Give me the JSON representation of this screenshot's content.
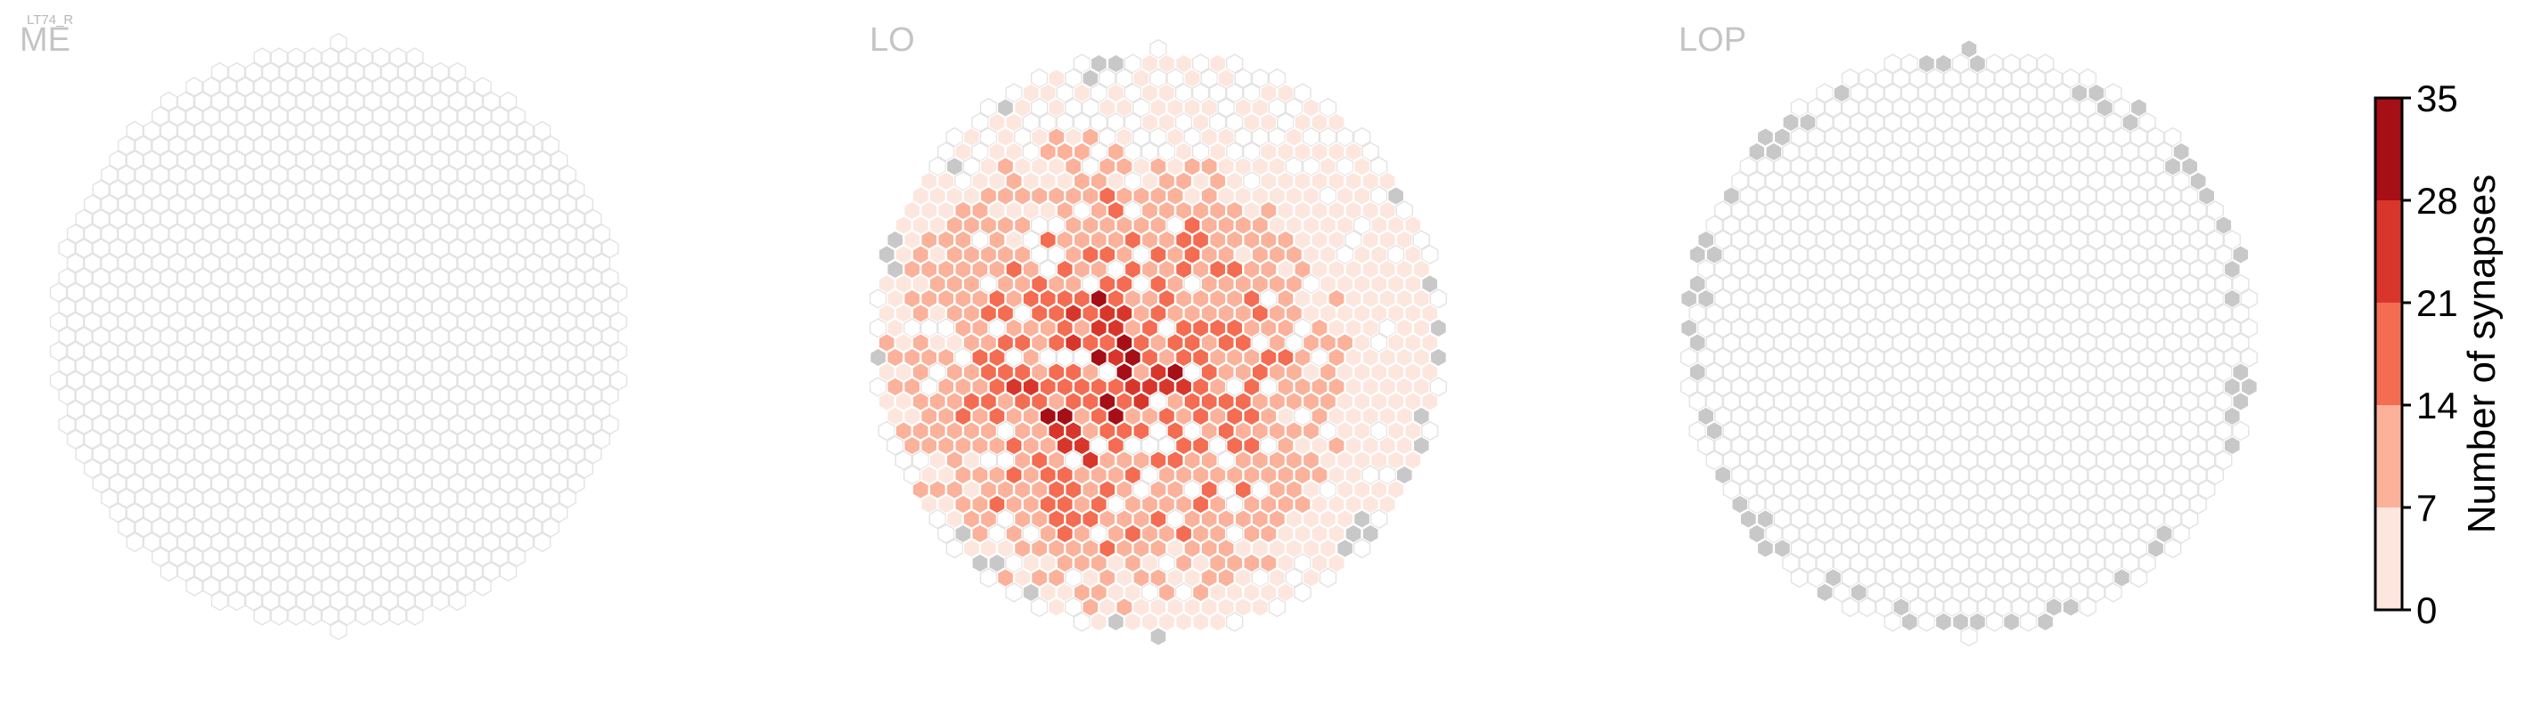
{
  "cell_type_label": "LT74_R",
  "panels": [
    {
      "id": "me",
      "label": "ME"
    },
    {
      "id": "lo",
      "label": "LO"
    },
    {
      "id": "lop",
      "label": "LOP"
    }
  ],
  "colors": {
    "empty_fill": "#ffffff",
    "empty_stroke": "#e3e3e3",
    "out_of_range": "#c8c8c8",
    "bins": [
      "#fde6dd",
      "#fbb19a",
      "#f46c51",
      "#d8362b",
      "#a50f15"
    ]
  },
  "chart_data": {
    "type": "heatmap",
    "colorbar": {
      "label": "Number of synapses",
      "min": 0,
      "max": 35,
      "ticks": [
        0,
        7,
        14,
        21,
        28,
        35
      ],
      "bin_edges": [
        0,
        7,
        14,
        21,
        28,
        35
      ]
    },
    "panels": [
      {
        "name": "ME",
        "nonzero_columns": 0,
        "synapse_bins_present": []
      },
      {
        "name": "LO",
        "nonzero_columns": "many",
        "max_bin": "28-35"
      },
      {
        "name": "LOP",
        "nonzero_columns": 0,
        "synapse_bins_present": []
      }
    ]
  }
}
